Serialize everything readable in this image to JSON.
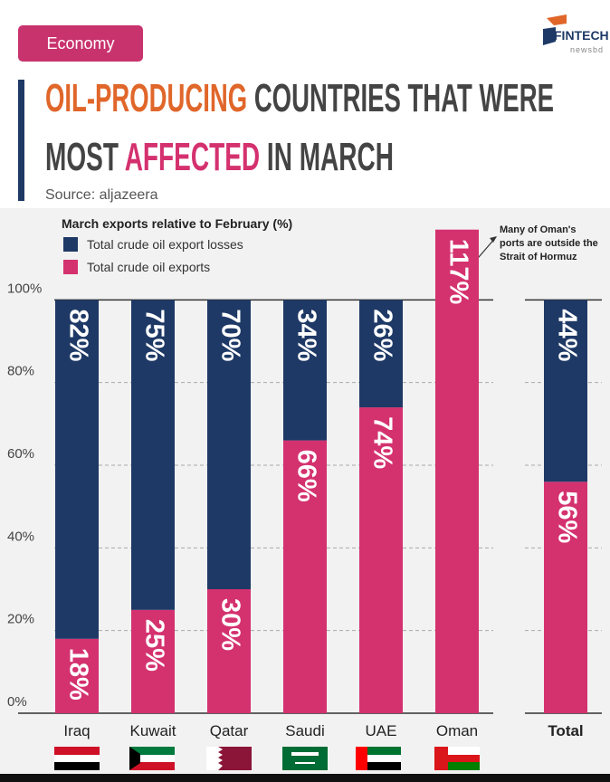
{
  "header": {
    "tag": "Economy",
    "logo": "FINTECH",
    "logo_sub": "newsbd",
    "title_line1": [
      "OIL-PRODUCING",
      " COUNTRIES THAT WERE"
    ],
    "title_line2": [
      "MOST ",
      "AFFECTED",
      " IN MARCH"
    ],
    "source": "Source: aljazeera"
  },
  "chart_data": {
    "type": "stacked_bar",
    "subtitle": "March exports relative to February (%)",
    "categories": [
      "Iraq",
      "Kuwait",
      "Qatar",
      "Saudi",
      "UAE",
      "Oman",
      "Total"
    ],
    "series": [
      {
        "name": "Total crude oil exports",
        "color": "#d4316f",
        "values": [
          18,
          25,
          30,
          66,
          74,
          117,
          56
        ],
        "value_labels": [
          "18%",
          "25%",
          "30%",
          "66%",
          "74%",
          "117%",
          "56%"
        ]
      },
      {
        "name": "Total crude oil export losses",
        "color": "#1e3966",
        "values": [
          82,
          75,
          70,
          34,
          26,
          null,
          44
        ],
        "value_labels": [
          "82%",
          "75%",
          "70%",
          "34%",
          "26%",
          null,
          "44%"
        ]
      }
    ],
    "legend_order": [
      1,
      0
    ],
    "ylim": [
      0,
      120
    ],
    "yticks": [
      {
        "value": 0,
        "label": "0%"
      },
      {
        "value": 20,
        "label": "20%"
      },
      {
        "value": 40,
        "label": "40%"
      },
      {
        "value": 60,
        "label": "60%"
      },
      {
        "value": 80,
        "label": "80%"
      },
      {
        "value": 100,
        "label": "100%"
      }
    ],
    "grid": true,
    "annotation": [
      "Many of Oman's",
      "ports are outside the",
      "Strait of Hormuz"
    ]
  }
}
